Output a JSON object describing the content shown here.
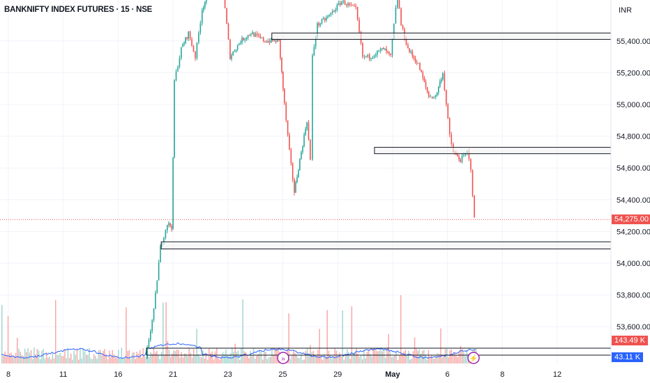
{
  "header": {
    "title": "BANKNIFTY INDEX FUTURES · 15 · NSE",
    "currency": "INR"
  },
  "colors": {
    "up": "#26a69a",
    "down": "#ef5350",
    "volume_up": "#a5d6cf",
    "volume_down": "#f7a9a7",
    "volume_ma": "#2962ff",
    "grid": "#f0f3fa",
    "zone_fill": "#f2f2f2",
    "zone_border": "#131722",
    "event_icon": "#9c27b0"
  },
  "chart_data": {
    "type": "candlestick",
    "title": "BANKNIFTY INDEX FUTURES · 15 · NSE",
    "y_unit": "INR",
    "ylim": [
      53480,
      55720
    ],
    "y_ticks": [
      "55,400.00",
      "55,200.00",
      "55,000.00",
      "54,800.00",
      "54,600.00",
      "54,400.00",
      "54,200.00",
      "54,000.00",
      "53,800.00",
      "53,600.00"
    ],
    "y_tick_values": [
      55400,
      55200,
      55000,
      54800,
      54600,
      54400,
      54200,
      54000,
      53800,
      53600
    ],
    "x_ticks": [
      "8",
      "11",
      "16",
      "21",
      "23",
      "25",
      "29",
      "May",
      "6",
      "8",
      "12"
    ],
    "x_tick_trading_day": [
      0,
      2,
      4,
      6,
      8,
      10,
      12,
      14,
      16,
      18,
      20
    ],
    "price_path_trading_day_vs_price": [
      [
        5.0,
        53400
      ],
      [
        5.3,
        53700
      ],
      [
        5.54,
        54100
      ],
      [
        5.79,
        54250
      ],
      [
        5.95,
        54230
      ],
      [
        6.0,
        54650
      ],
      [
        6.05,
        55150
      ],
      [
        6.3,
        55350
      ],
      [
        6.56,
        55450
      ],
      [
        6.81,
        55300
      ],
      [
        7.06,
        55600
      ],
      [
        7.32,
        55720
      ],
      [
        7.83,
        55700
      ],
      [
        8.08,
        55300
      ],
      [
        8.46,
        55400
      ],
      [
        8.84,
        55450
      ],
      [
        9.35,
        55400
      ],
      [
        9.86,
        55400
      ],
      [
        10.06,
        55000
      ],
      [
        10.24,
        54700
      ],
      [
        10.42,
        54450
      ],
      [
        10.62,
        54650
      ],
      [
        10.88,
        54900
      ],
      [
        11.0,
        54650
      ],
      [
        11.08,
        55300
      ],
      [
        11.26,
        55500
      ],
      [
        11.64,
        55550
      ],
      [
        12.15,
        55650
      ],
      [
        12.66,
        55600
      ],
      [
        12.91,
        55300
      ],
      [
        13.16,
        55300
      ],
      [
        13.67,
        55350
      ],
      [
        13.93,
        55300
      ],
      [
        14.05,
        55500
      ],
      [
        14.18,
        55700
      ],
      [
        14.31,
        55500
      ],
      [
        14.56,
        55350
      ],
      [
        14.94,
        55250
      ],
      [
        15.32,
        55050
      ],
      [
        15.57,
        55050
      ],
      [
        15.83,
        55200
      ],
      [
        16.08,
        54800
      ],
      [
        16.21,
        54700
      ],
      [
        16.47,
        54650
      ],
      [
        16.72,
        54700
      ],
      [
        16.85,
        54600
      ],
      [
        16.98,
        54275
      ]
    ],
    "last_price": "54,275.00",
    "last_price_value": 54275,
    "zones": [
      {
        "from_day": 9.6,
        "top": 55450,
        "bottom": 55410
      },
      {
        "from_day": 13.34,
        "top": 54730,
        "bottom": 54690
      },
      {
        "from_day": 5.57,
        "top": 54135,
        "bottom": 54090
      }
    ],
    "volume": {
      "last_volume": "143.49 K",
      "volume_ma": "43.11 K",
      "zone_from_day": 5.03
    }
  }
}
